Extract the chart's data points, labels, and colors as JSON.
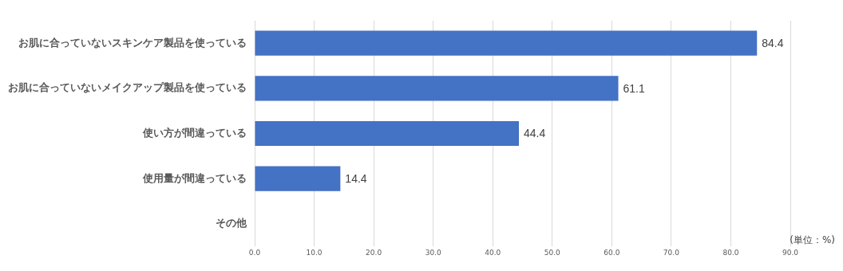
{
  "chart_data": {
    "type": "bar",
    "orientation": "horizontal",
    "categories": [
      "お肌に合っていないスキンケア製品を使っている",
      "お肌に合っていないメイクアップ製品を使っている",
      "使い方が間違っている",
      "使用量が間違っている",
      "その他"
    ],
    "values": [
      84.4,
      61.1,
      44.4,
      14.4,
      0
    ],
    "value_labels": [
      "84.4",
      "61.1",
      "44.4",
      "14.4",
      null
    ],
    "color": "#4472c4",
    "xlim": [
      0,
      90
    ],
    "xticks": [
      {
        "value": 0,
        "label": "0.0"
      },
      {
        "value": 10,
        "label": "10.0"
      },
      {
        "value": 20,
        "label": "20.0"
      },
      {
        "value": 30,
        "label": "30.0"
      },
      {
        "value": 40,
        "label": "40.0"
      },
      {
        "value": 50,
        "label": "50.0"
      },
      {
        "value": 60,
        "label": "60.0"
      },
      {
        "value": 70,
        "label": "70.0"
      },
      {
        "value": 80,
        "label": "80.0"
      },
      {
        "value": 90,
        "label": "90.0"
      }
    ],
    "grid": "x",
    "legend": false,
    "annotations": [
      "(単位：%)"
    ]
  }
}
